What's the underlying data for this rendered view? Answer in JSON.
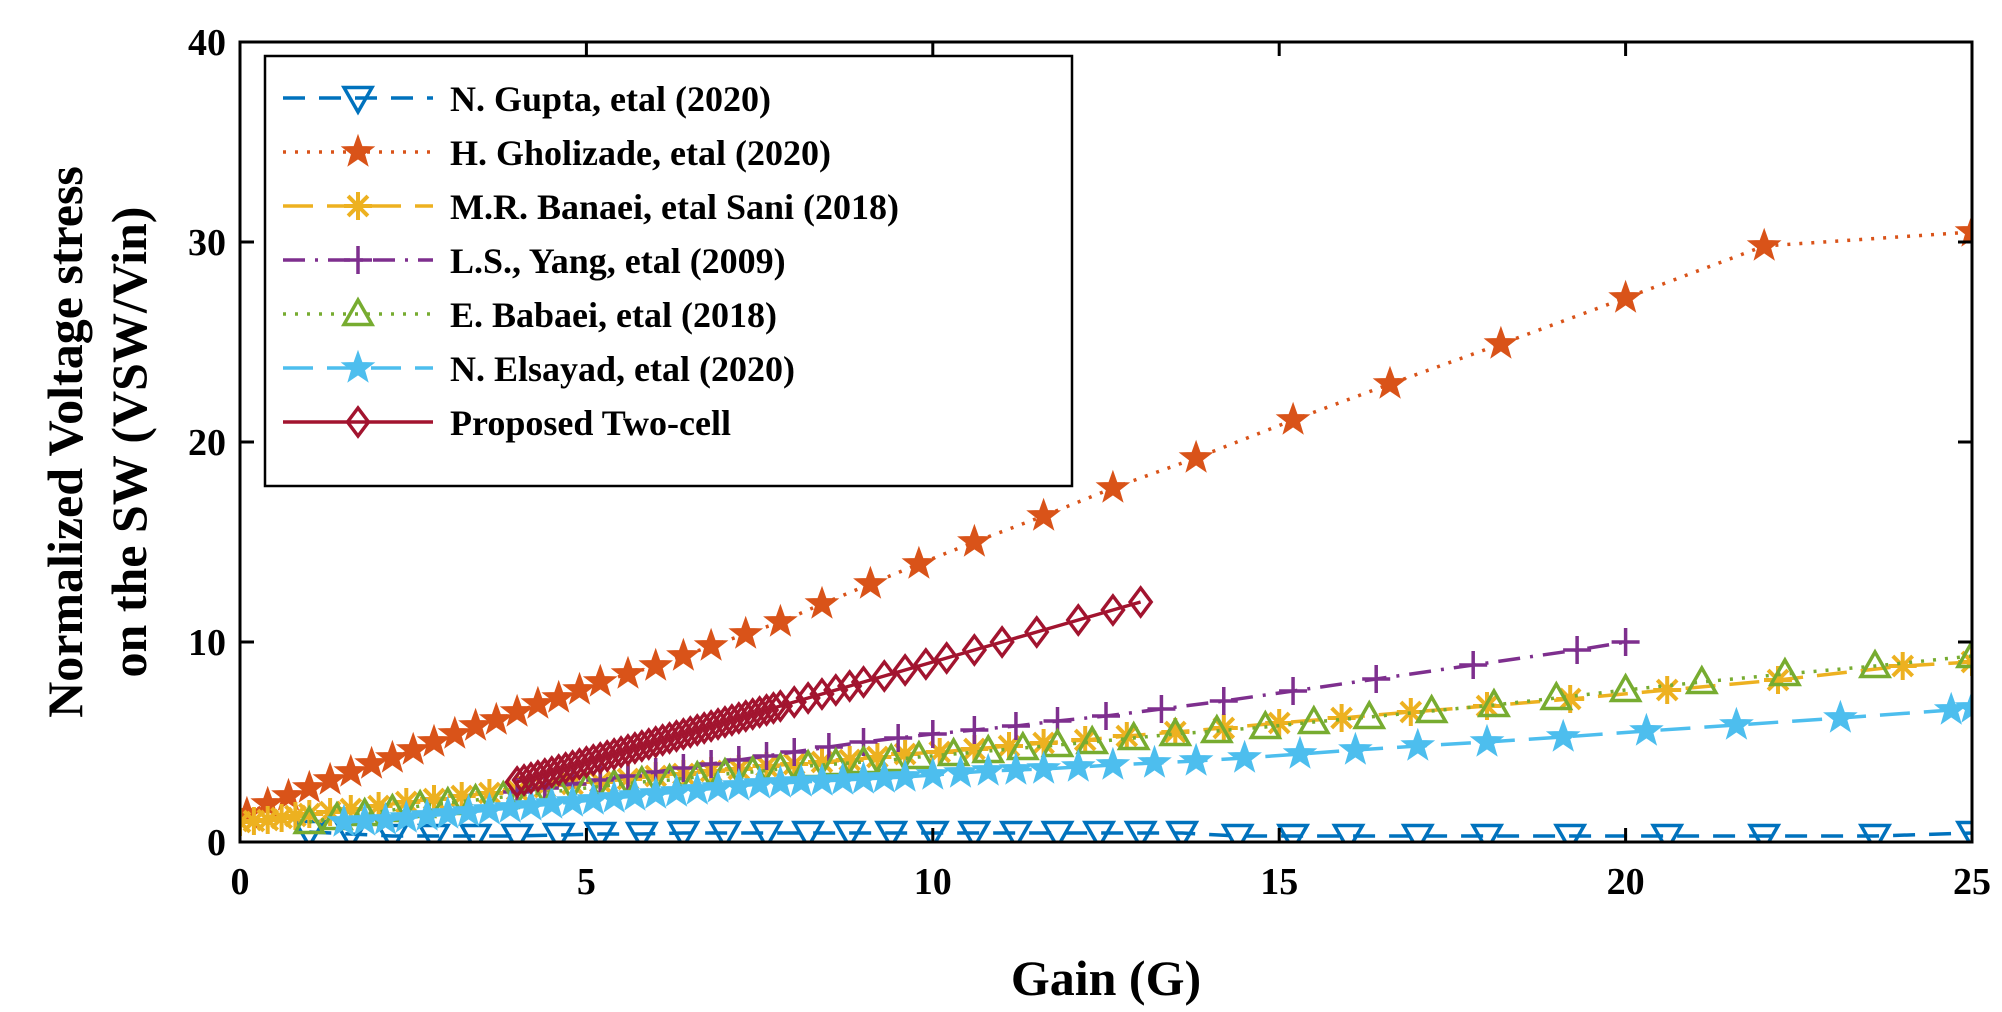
{
  "chart_data": {
    "type": "line",
    "title": "",
    "xlabel": "Gain (G)",
    "ylabel_lines": [
      "Normalized Voltage stress",
      "on the SW (VSW/Vin)"
    ],
    "xlim": [
      0,
      25
    ],
    "ylim": [
      0,
      40
    ],
    "xticks": [
      "0",
      "5",
      "10",
      "15",
      "20",
      "25"
    ],
    "yticks": [
      "0",
      "10",
      "20",
      "30",
      "40"
    ],
    "grid": false,
    "legend_position": "top-left",
    "series": [
      {
        "name": "N. Gupta, etal (2020)",
        "color": "#0072BD",
        "dash": "dash",
        "marker": "triangle-down",
        "x": [
          1.0,
          1.6,
          2.2,
          2.8,
          3.4,
          4.0,
          4.6,
          5.2,
          5.8,
          6.4,
          7.0,
          7.6,
          8.2,
          8.8,
          9.4,
          10.0,
          10.6,
          11.2,
          11.8,
          12.4,
          13.0,
          13.6,
          14.4,
          15.2,
          16.0,
          17.0,
          18.0,
          19.2,
          20.6,
          22.0,
          23.6,
          25.0
        ],
        "y": [
          0.5,
          0.4,
          0.3,
          0.3,
          0.3,
          0.3,
          0.35,
          0.4,
          0.4,
          0.45,
          0.45,
          0.45,
          0.45,
          0.45,
          0.45,
          0.45,
          0.45,
          0.45,
          0.45,
          0.45,
          0.45,
          0.45,
          0.3,
          0.3,
          0.3,
          0.3,
          0.3,
          0.3,
          0.3,
          0.3,
          0.3,
          0.45
        ]
      },
      {
        "name": "H. Gholizade, etal (2020)",
        "color": "#D95319",
        "dash": "dot",
        "marker": "star5",
        "x": [
          0.1,
          0.4,
          0.7,
          1.0,
          1.3,
          1.6,
          1.9,
          2.2,
          2.5,
          2.8,
          3.1,
          3.4,
          3.7,
          4.0,
          4.3,
          4.6,
          4.9,
          5.2,
          5.6,
          6.0,
          6.4,
          6.8,
          7.3,
          7.8,
          8.4,
          9.1,
          9.8,
          10.6,
          11.6,
          12.6,
          13.8,
          15.2,
          16.6,
          18.2,
          20.0,
          22.0,
          25.0
        ],
        "y": [
          1.4,
          1.9,
          2.3,
          2.7,
          3.1,
          3.5,
          3.9,
          4.2,
          4.6,
          5.0,
          5.4,
          5.8,
          6.1,
          6.5,
          6.9,
          7.2,
          7.6,
          8.0,
          8.4,
          8.8,
          9.3,
          9.8,
          10.4,
          11.0,
          11.9,
          12.9,
          13.9,
          15.0,
          16.3,
          17.7,
          19.2,
          21.1,
          22.9,
          24.9,
          27.2,
          29.8,
          30.5
        ]
      },
      {
        "name": "M.R. Banaei, etal Sani (2018)",
        "color": "#EDB120",
        "dash": "longdash",
        "marker": "asterisk",
        "x": [
          0.0,
          0.2,
          0.4,
          0.6,
          0.8,
          1.0,
          1.3,
          1.6,
          2.0,
          2.4,
          2.8,
          3.2,
          3.6,
          4.0,
          4.4,
          4.8,
          5.2,
          5.6,
          6.0,
          6.4,
          6.8,
          7.2,
          7.6,
          8.0,
          8.4,
          8.8,
          9.2,
          9.6,
          10.1,
          10.6,
          11.1,
          11.6,
          12.2,
          12.8,
          13.5,
          14.2,
          15.0,
          15.9,
          16.9,
          18.0,
          19.2,
          20.6,
          22.2,
          24.0,
          25.0
        ],
        "y": [
          1.0,
          1.05,
          1.1,
          1.2,
          1.3,
          1.4,
          1.5,
          1.65,
          1.8,
          2.0,
          2.15,
          2.3,
          2.45,
          2.6,
          2.75,
          2.9,
          3.0,
          3.15,
          3.3,
          3.4,
          3.55,
          3.65,
          3.8,
          3.9,
          4.0,
          4.1,
          4.25,
          4.4,
          4.5,
          4.65,
          4.8,
          4.95,
          5.1,
          5.3,
          5.5,
          5.7,
          5.95,
          6.2,
          6.5,
          6.8,
          7.15,
          7.6,
          8.1,
          8.8,
          9.0
        ]
      },
      {
        "name": "L.S., Yang, etal (2009)",
        "color": "#7E2F8E",
        "dash": "dashdot",
        "marker": "plus",
        "x": [
          4.0,
          4.4,
          4.8,
          5.2,
          5.6,
          6.0,
          6.4,
          6.8,
          7.2,
          7.6,
          8.0,
          8.5,
          9.0,
          9.5,
          10.0,
          10.6,
          11.2,
          11.8,
          12.5,
          13.3,
          14.2,
          15.2,
          16.4,
          17.8,
          19.3,
          20.0
        ],
        "y": [
          2.5,
          2.7,
          2.9,
          3.1,
          3.3,
          3.5,
          3.7,
          3.9,
          4.1,
          4.3,
          4.5,
          4.75,
          5.0,
          5.2,
          5.4,
          5.6,
          5.8,
          6.05,
          6.3,
          6.65,
          7.05,
          7.55,
          8.15,
          8.85,
          9.6,
          10.0
        ]
      },
      {
        "name": "E. Babaei, etal (2018)",
        "color": "#77AC30",
        "dash": "dot",
        "marker": "triangle-up",
        "x": [
          1.0,
          1.4,
          1.8,
          2.2,
          2.6,
          3.0,
          3.4,
          3.8,
          4.2,
          4.6,
          5.0,
          5.4,
          5.8,
          6.2,
          6.6,
          7.0,
          7.4,
          7.8,
          8.2,
          8.6,
          9.0,
          9.4,
          9.8,
          10.3,
          10.8,
          11.3,
          11.8,
          12.3,
          12.9,
          13.5,
          14.1,
          14.8,
          15.5,
          16.3,
          17.2,
          18.1,
          19.0,
          20.0,
          21.1,
          22.3,
          23.6,
          25.0
        ],
        "y": [
          1.0,
          1.2,
          1.4,
          1.6,
          1.8,
          1.95,
          2.1,
          2.25,
          2.4,
          2.55,
          2.7,
          2.85,
          3.0,
          3.1,
          3.25,
          3.4,
          3.5,
          3.65,
          3.8,
          3.9,
          4.0,
          4.1,
          4.25,
          4.4,
          4.55,
          4.7,
          4.85,
          5.0,
          5.2,
          5.4,
          5.55,
          5.75,
          6.0,
          6.25,
          6.55,
          6.85,
          7.2,
          7.6,
          8.0,
          8.4,
          8.8,
          9.3
        ]
      },
      {
        "name": "N. Elsayad, etal (2020)",
        "color": "#4DBEEE",
        "dash": "longdash",
        "marker": "star5",
        "x": [
          1.5,
          1.8,
          2.1,
          2.4,
          2.7,
          3.0,
          3.3,
          3.6,
          3.9,
          4.2,
          4.5,
          4.8,
          5.1,
          5.4,
          5.7,
          6.0,
          6.3,
          6.6,
          6.9,
          7.2,
          7.5,
          7.8,
          8.1,
          8.4,
          8.7,
          9.0,
          9.3,
          9.6,
          10.0,
          10.4,
          10.8,
          11.2,
          11.6,
          12.1,
          12.6,
          13.2,
          13.8,
          14.5,
          15.3,
          16.1,
          17.0,
          18.0,
          19.1,
          20.3,
          21.6,
          23.1,
          24.7,
          25.0
        ],
        "y": [
          1.0,
          1.05,
          1.1,
          1.2,
          1.3,
          1.4,
          1.5,
          1.6,
          1.7,
          1.8,
          1.9,
          2.0,
          2.1,
          2.2,
          2.3,
          2.4,
          2.5,
          2.6,
          2.7,
          2.8,
          2.9,
          2.95,
          3.0,
          3.05,
          3.1,
          3.15,
          3.2,
          3.25,
          3.35,
          3.45,
          3.55,
          3.6,
          3.65,
          3.75,
          3.85,
          3.95,
          4.05,
          4.2,
          4.4,
          4.6,
          4.8,
          5.0,
          5.25,
          5.55,
          5.85,
          6.2,
          6.6,
          6.7
        ]
      },
      {
        "name": "Proposed Two-cell",
        "color": "#A2142F",
        "dash": "solid",
        "marker": "diamond",
        "x": [
          4.0,
          4.1,
          4.2,
          4.3,
          4.4,
          4.5,
          4.6,
          4.7,
          4.8,
          4.9,
          5.0,
          5.1,
          5.2,
          5.3,
          5.4,
          5.5,
          5.6,
          5.7,
          5.8,
          5.9,
          6.0,
          6.1,
          6.2,
          6.3,
          6.4,
          6.5,
          6.6,
          6.7,
          6.8,
          6.9,
          7.0,
          7.1,
          7.2,
          7.3,
          7.4,
          7.5,
          7.6,
          7.7,
          7.8,
          8.0,
          8.2,
          8.4,
          8.6,
          8.8,
          9.0,
          9.3,
          9.6,
          9.9,
          10.2,
          10.6,
          11.0,
          11.5,
          12.1,
          12.6,
          13.0
        ],
        "y": [
          3.0,
          3.1,
          3.2,
          3.3,
          3.4,
          3.5,
          3.6,
          3.7,
          3.8,
          3.9,
          4.0,
          4.1,
          4.2,
          4.3,
          4.4,
          4.5,
          4.6,
          4.7,
          4.8,
          4.9,
          5.0,
          5.1,
          5.2,
          5.3,
          5.4,
          5.5,
          5.6,
          5.7,
          5.8,
          5.9,
          6.0,
          6.1,
          6.2,
          6.3,
          6.4,
          6.5,
          6.6,
          6.7,
          6.8,
          7.0,
          7.2,
          7.4,
          7.6,
          7.8,
          8.0,
          8.3,
          8.6,
          8.9,
          9.2,
          9.6,
          10.0,
          10.5,
          11.1,
          11.6,
          12.0
        ]
      }
    ]
  }
}
